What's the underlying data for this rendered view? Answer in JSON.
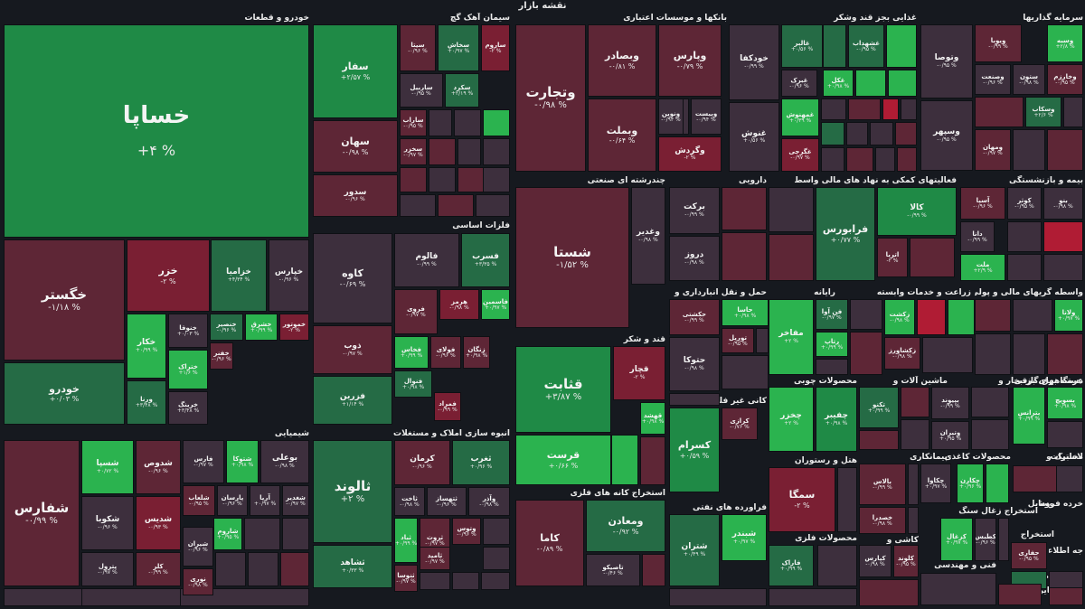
{
  "page": {
    "title": "نقشه بازار"
  },
  "colors": {
    "g3": "#2bb34f",
    "g2": "#1f8a46",
    "g1": "#256b45",
    "n": "#3d2f3d",
    "r1": "#5e2636",
    "r2": "#7a1f33",
    "r3": "#b01c34"
  },
  "sectors": [
    {
      "name": "خودرو و قطعات"
    },
    {
      "name": "سیمان آهک گچ"
    },
    {
      "name": "بانکها و موسسات اعتباری"
    },
    {
      "name": "غذایی بجز قند وشکر"
    },
    {
      "name": "سرمایه گذاریها"
    },
    {
      "name": "فلزات اساسی"
    },
    {
      "name": "چندرشته ای صنعتی"
    },
    {
      "name": "دارویی"
    },
    {
      "name": "فعالیتهای کمکی به نهاد های مالی واسط"
    },
    {
      "name": "بیمه و بازنشستگی"
    },
    {
      "name": "حمل و نقل انبارداری و"
    },
    {
      "name": "رایانه"
    },
    {
      "name": "زراعت و خدمات وابسته"
    },
    {
      "name": "واسطه گریهای مالی و پولی"
    },
    {
      "name": "قند و شکر"
    },
    {
      "name": "کانی غیر فلزی"
    },
    {
      "name": "محصولات چوبی"
    },
    {
      "name": "عرضه برق،گاز،بخار و"
    },
    {
      "name": "ماشین آلات و"
    },
    {
      "name": "دستگاههای برقی"
    },
    {
      "name": "شیمیایی"
    },
    {
      "name": "انبوه سازی املاک و مستغلات"
    },
    {
      "name": "استخراج کانه های فلزی"
    },
    {
      "name": "هتل و رستوران"
    },
    {
      "name": "پیمانکاری"
    },
    {
      "name": "محصولات کاغذی"
    },
    {
      "name": "لاستیک و"
    },
    {
      "name": "مخابرات"
    },
    {
      "name": "فراورده های نفتی"
    },
    {
      "name": "محصولات فلزی"
    },
    {
      "name": "استخراج زغال سنگ"
    },
    {
      "name": "وسایل"
    },
    {
      "name": "خرده فروشی"
    },
    {
      "name": "کاشی و"
    },
    {
      "name": "فنی و مهندسی"
    },
    {
      "name": "استخراج"
    },
    {
      "name": "محصولات"
    },
    {
      "name": "جه اطلاعات"
    },
    {
      "name": "منسوج"
    },
    {
      "name": "سایر"
    },
    {
      "name": "فعال"
    }
  ],
  "tiles": [
    {
      "name": "خساپا",
      "pct": "+۴ %",
      "c": "g2"
    },
    {
      "name": "خگستر",
      "pct": "-۱/۱۸ %",
      "c": "r1"
    },
    {
      "name": "خزر",
      "pct": "-۲ %",
      "c": "r2"
    },
    {
      "name": "خزامیا",
      "pct": "+۴/۳۴ %",
      "c": "g1"
    },
    {
      "name": "خپارس",
      "pct": "-۰/۹۶ %",
      "c": "n"
    },
    {
      "name": "خودرو",
      "pct": "+۰/۰۳ %",
      "c": "g1"
    },
    {
      "name": "خکار",
      "pct": "+۰/۹۹ %",
      "c": "g3"
    },
    {
      "name": "خنوقا",
      "pct": "+۰/۰۳ %",
      "c": "n"
    },
    {
      "name": "خنصیر",
      "pct": "-۰/۹۶ %",
      "c": "g1"
    },
    {
      "name": "خشرق",
      "pct": "+۰/۹۹ %",
      "c": "g3"
    },
    {
      "name": "خموتور",
      "pct": "-۲ %",
      "c": "r2"
    },
    {
      "name": "خفنر",
      "pct": "-۰/۹۶ %",
      "c": "r1"
    },
    {
      "name": "ورنا",
      "pct": "+۳/۴۸ %",
      "c": "g1"
    },
    {
      "name": "ختراک",
      "pct": "+۱/۶ %",
      "c": "g3"
    },
    {
      "name": "خرینگ",
      "pct": "+۳/۴۸ %",
      "c": "n"
    },
    {
      "name": "سفار",
      "pct": "+۲/۵۷ %",
      "c": "g2"
    },
    {
      "name": "سیتا",
      "pct": "-۰/۹۶ %",
      "c": "r1"
    },
    {
      "name": "سخاش",
      "pct": "+۰/۹۷ %",
      "c": "g1"
    },
    {
      "name": "ساروم",
      "pct": "-۲ %",
      "c": "r2"
    },
    {
      "name": "ساربیل",
      "pct": "-۰/۹۵ %",
      "c": "n"
    },
    {
      "name": "سکرد",
      "pct": "+۲/۱۹ %",
      "c": "g1"
    },
    {
      "name": "سهان",
      "pct": "-۰/۹۸ %",
      "c": "r1"
    },
    {
      "name": "ساراب",
      "pct": "-۰/۹۵ %",
      "c": "r1"
    },
    {
      "name": "سدور",
      "pct": "-۰/۹۶ %",
      "c": "r1"
    },
    {
      "name": "سخزر",
      "pct": "-۰/۹۷ %",
      "c": "r1"
    },
    {
      "name": "وتجارت",
      "pct": "-۰/۹۸ %",
      "c": "r1"
    },
    {
      "name": "وبصادر",
      "pct": "-۰/۸۱ %",
      "c": "r1"
    },
    {
      "name": "وپارس",
      "pct": "-۰/۷۹ %",
      "c": "r1"
    },
    {
      "name": "وبملت",
      "pct": "-۰/۶۴ %",
      "c": "r1"
    },
    {
      "name": "وبانک",
      "pct": "-۰/۹۷ %",
      "c": "n"
    },
    {
      "name": "ونوین",
      "pct": "-۰/۹۴ %",
      "c": "n"
    },
    {
      "name": "وبیست",
      "pct": "-۰/۹۴ %",
      "c": "n"
    },
    {
      "name": "وگردش",
      "pct": "-۲ %",
      "c": "r2"
    },
    {
      "name": "خودکفا",
      "pct": "-۰/۹۹ %",
      "c": "n"
    },
    {
      "name": "غالبر",
      "pct": "+۰/۵۶ %",
      "c": "g1"
    },
    {
      "name": "غشهداب",
      "pct": "-۰/۹۵ %",
      "c": "g1"
    },
    {
      "name": "غبرک",
      "pct": "-۰/۹۶ %",
      "c": "n"
    },
    {
      "name": "غکل",
      "pct": "+۰/۹۸ %",
      "c": "g3"
    },
    {
      "name": "غنوش",
      "pct": "+۰/۵۶ %",
      "c": "n"
    },
    {
      "name": "غمهنوش",
      "pct": "+۰/۳۹ %",
      "c": "g3"
    },
    {
      "name": "غگرجی",
      "pct": "-۰/۹۷ %",
      "c": "r2"
    },
    {
      "name": "ویوبا",
      "pct": "-۰/۹۹ %",
      "c": "r1"
    },
    {
      "name": "وسبه",
      "pct": "+۲/۸ %",
      "c": "g3"
    },
    {
      "name": "وتوصا",
      "pct": "-۰/۹۵ %",
      "c": "n"
    },
    {
      "name": "وصنعت",
      "pct": "-۰/۹۶ %",
      "c": "n"
    },
    {
      "name": "ستون",
      "pct": "-۰/۹۸ %",
      "c": "n"
    },
    {
      "name": "وخارزم",
      "pct": "-۰/۹۵ %",
      "c": "r1"
    },
    {
      "name": "وسکاب",
      "pct": "+۲/۶ %",
      "c": "g1"
    },
    {
      "name": "وسپهر",
      "pct": "-۰/۹۵ %",
      "c": "n"
    },
    {
      "name": "ومهان",
      "pct": "-۰/۹۷ %",
      "c": "r1"
    },
    {
      "name": "کاوه",
      "pct": "-۰/۶۹ %",
      "c": "n"
    },
    {
      "name": "فالوم",
      "pct": "-۰/۹۹ %",
      "c": "n"
    },
    {
      "name": "فسرب",
      "pct": "+۳/۳۵ %",
      "c": "g1"
    },
    {
      "name": "فروی",
      "pct": "-۰/۹۷ %",
      "c": "r1"
    },
    {
      "name": "هرمز",
      "pct": "-۰/۹۸ %",
      "c": "r2"
    },
    {
      "name": "فاسمین",
      "pct": "+۰/۹۷ %",
      "c": "g3"
    },
    {
      "name": "ذوب",
      "pct": "-۰/۹۷ %",
      "c": "r1"
    },
    {
      "name": "فخاس",
      "pct": "+۰/۹۹ %",
      "c": "g3"
    },
    {
      "name": "فولای",
      "pct": "-۰/۹۶ %",
      "c": "r1"
    },
    {
      "name": "زنگان",
      "pct": "+۰/۹۸ %",
      "c": "r1"
    },
    {
      "name": "فنوال",
      "pct": "+۰/۹۸ %",
      "c": "g1"
    },
    {
      "name": "فزرین",
      "pct": "+۱/۱۴ %",
      "c": "g1"
    },
    {
      "name": "فمراد",
      "pct": "-۰/۹۹ %",
      "c": "r2"
    },
    {
      "name": "شستا",
      "pct": "-۱/۵۲ %",
      "c": "r1"
    },
    {
      "name": "وغدیر",
      "pct": "-۰/۹۸ %",
      "c": "n"
    },
    {
      "name": "برکت",
      "pct": "-۰/۹۹ %",
      "c": "n"
    },
    {
      "name": "دروز",
      "pct": "-۰/۹۸ %",
      "c": "n"
    },
    {
      "name": "فرابورس",
      "pct": "+۰/۷۷ %",
      "c": "g1"
    },
    {
      "name": "کالا",
      "pct": "-۰/۹۹ %",
      "c": "g2"
    },
    {
      "name": "اتریا",
      "pct": "-۲ %",
      "c": "r1"
    },
    {
      "name": "آسیا",
      "pct": "-۰/۹۶ %",
      "c": "r1"
    },
    {
      "name": "کوثر",
      "pct": "-۰/۹۵ %",
      "c": "n"
    },
    {
      "name": "بنو",
      "pct": "-۰/۹۸ %",
      "c": "n"
    },
    {
      "name": "دانا",
      "pct": "-۰/۹۹ %",
      "c": "n"
    },
    {
      "name": "ملت",
      "pct": "+۲/۹ %",
      "c": "g3"
    },
    {
      "name": "حکشتی",
      "pct": "-۰/۹۹ %",
      "c": "r1"
    },
    {
      "name": "حاسا",
      "pct": "+۰/۹۸ %",
      "c": "g3"
    },
    {
      "name": "توریل",
      "pct": "-۰/۹۵ %",
      "c": "r1"
    },
    {
      "name": "حتوکا",
      "pct": "-۰/۹۸ %",
      "c": "n"
    },
    {
      "name": "مفاخر",
      "pct": "+۲ %",
      "c": "g3"
    },
    {
      "name": "فن آوا",
      "pct": "-۰/۹۷ %",
      "c": "g1"
    },
    {
      "name": "رتاپ",
      "pct": "+۰/۹۹ %",
      "c": "g3"
    },
    {
      "name": "زکشت",
      "pct": "-۰/۹۸ %",
      "c": "g3"
    },
    {
      "name": "زکشاورز",
      "pct": "-۰/۹۸ %",
      "c": "r1"
    },
    {
      "name": "ولانا",
      "pct": "+۰/۹۷ %",
      "c": "g3"
    },
    {
      "name": "قثابت",
      "pct": "+۳/۸۷ %",
      "c": "g2"
    },
    {
      "name": "قچار",
      "pct": "-۲ %",
      "c": "r2"
    },
    {
      "name": "قهشد",
      "pct": "+۰/۹۸ %",
      "c": "g3"
    },
    {
      "name": "قرست",
      "pct": "+۰/۶۶ %",
      "c": "g3"
    },
    {
      "name": "کرازی",
      "pct": "-۰/۷۶ %",
      "c": "r1"
    },
    {
      "name": "کسرام",
      "pct": "+۰/۵۹ %",
      "c": "g2"
    },
    {
      "name": "چخزر",
      "pct": "+۲ %",
      "c": "g3"
    },
    {
      "name": "چفیبر",
      "pct": "+۰/۹۸ %",
      "c": "g2"
    },
    {
      "name": "تکنو",
      "pct": "+۰/۹۹ %",
      "c": "g1"
    },
    {
      "name": "بپیوند",
      "pct": "-۰/۹۹ %",
      "c": "n"
    },
    {
      "name": "وتیران",
      "pct": "+۰/۹۵ %",
      "c": "n"
    },
    {
      "name": "بترانس",
      "pct": "+۰/۹۹ %",
      "c": "g3"
    },
    {
      "name": "بسویچ",
      "pct": "+۰/۹۸ %",
      "c": "g3"
    },
    {
      "name": "شفارس",
      "pct": "-۰/۹۹ %",
      "c": "r1"
    },
    {
      "name": "شسپا",
      "pct": "+۰/۷۲ %",
      "c": "g3"
    },
    {
      "name": "شدوص",
      "pct": "-۰/۹۶ %",
      "c": "r1"
    },
    {
      "name": "فارس",
      "pct": "-۰/۹۷ %",
      "c": "n"
    },
    {
      "name": "شتوکا",
      "pct": "+۰/۹۸ %",
      "c": "g3"
    },
    {
      "name": "بوعلی",
      "pct": "-۰/۹۸ %",
      "c": "n"
    },
    {
      "name": "شکوبا",
      "pct": "-۰/۹۶ %",
      "c": "n"
    },
    {
      "name": "شدیس",
      "pct": "-۰/۹۳ %",
      "c": "r2"
    },
    {
      "name": "شغدیر",
      "pct": "-۰/۹۷ %",
      "c": "n"
    },
    {
      "name": "پترول",
      "pct": "-۰/۹۷ %",
      "c": "n"
    },
    {
      "name": "کلر",
      "pct": "-۰/۹۹ %",
      "c": "r1"
    },
    {
      "name": "شاروم",
      "pct": "+۰/۹۵ %",
      "c": "g3"
    },
    {
      "name": "شیران",
      "pct": "-۰/۹۶ %",
      "c": "n"
    },
    {
      "name": "نوری",
      "pct": "-۰/۹۸ %",
      "c": "r1"
    },
    {
      "name": "شلعاب",
      "pct": "-۰/۹۵ %",
      "c": "r1"
    },
    {
      "name": "پارسان",
      "pct": "-۰/۹۶ %",
      "c": "n"
    },
    {
      "name": "آریا",
      "pct": "+۰/۹۷ %",
      "c": "n"
    },
    {
      "name": "ثالوند",
      "pct": "+۲ %",
      "c": "g1"
    },
    {
      "name": "کرمان",
      "pct": "-۰/۹۶ %",
      "c": "r1"
    },
    {
      "name": "ثغرب",
      "pct": "+۰/۹۶ %",
      "c": "g1"
    },
    {
      "name": "ثاخت",
      "pct": "-۰/۹۸ %",
      "c": "n"
    },
    {
      "name": "ثتهساز",
      "pct": "-۰/۹۶ %",
      "c": "n"
    },
    {
      "name": "وآذر",
      "pct": "-۰/۹۸ %",
      "c": "n"
    },
    {
      "name": "ثشاهد",
      "pct": "+۰/۳۳ %",
      "c": "g1"
    },
    {
      "name": "ثباد",
      "pct": "+۰/۹۹ %",
      "c": "g3"
    },
    {
      "name": "ثروث",
      "pct": "-۰/۹۷ %",
      "c": "r1"
    },
    {
      "name": "وتوس",
      "pct": "-۰/۹۶ %",
      "c": "r1"
    },
    {
      "name": "ثامید",
      "pct": "-۰/۹۷ %",
      "c": "r1"
    },
    {
      "name": "ثنوسا",
      "pct": "-۰/۹۷ %",
      "c": "r1"
    },
    {
      "name": "کاما",
      "pct": "-۰/۸۹ %",
      "c": "r1"
    },
    {
      "name": "ومعادن",
      "pct": "-۰/۹۲ %",
      "c": "g1"
    },
    {
      "name": "تاصیکو",
      "pct": "-۰/۴۶ %",
      "c": "n"
    },
    {
      "name": "سمگا",
      "pct": "-۲ %",
      "c": "r2"
    },
    {
      "name": "بالاس",
      "pct": "-۰/۹۹ %",
      "c": "r1"
    },
    {
      "name": "خصدرا",
      "pct": "-۰/۹۸ %",
      "c": "r1"
    },
    {
      "name": "چکاوا",
      "pct": "+۰/۹۷ %",
      "c": "n"
    },
    {
      "name": "چکارن",
      "pct": "+۰/۹۶ %",
      "c": "g3"
    },
    {
      "name": "شبندر",
      "pct": "+۰/۹۷ %",
      "c": "g3"
    },
    {
      "name": "شتران",
      "pct": "+۰/۴۹ %",
      "c": "g1"
    },
    {
      "name": "فاراک",
      "pct": "+۰/۹۹ %",
      "c": "g1"
    },
    {
      "name": "کیارس",
      "pct": "-۰/۹۸ %",
      "c": "n"
    },
    {
      "name": "کلوند",
      "pct": "-۰/۹۵ %",
      "c": "r1"
    },
    {
      "name": "کزغال",
      "pct": "+۰/۹۷ %",
      "c": "g3"
    },
    {
      "name": "کطبس",
      "pct": "-۰/۹۶ %",
      "c": "n"
    },
    {
      "name": "حفاری",
      "pct": "-۰/۹۵ %",
      "c": "r1"
    }
  ]
}
